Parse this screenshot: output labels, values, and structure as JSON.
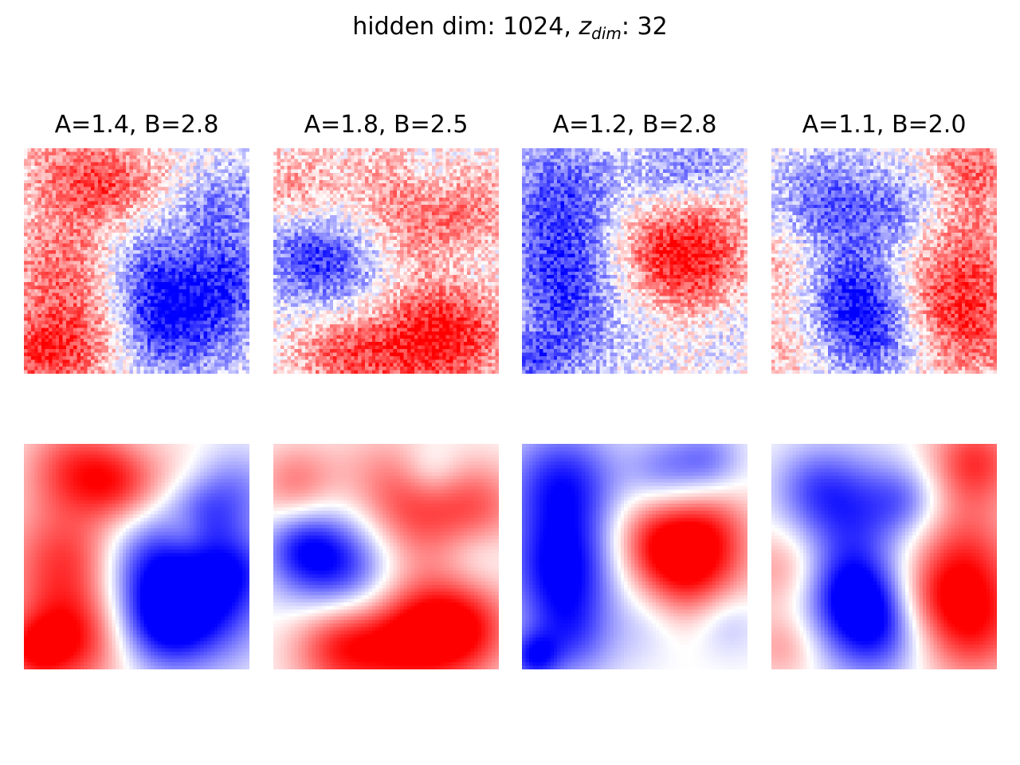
{
  "figure": {
    "title_prefix": "hidden dim: 1024, ",
    "title_var": "z",
    "title_sub": "dim",
    "title_suffix": ": 32"
  },
  "columns": [
    {
      "label": "A=1.4, B=2.8"
    },
    {
      "label": "A=1.8, B=2.5"
    },
    {
      "label": "A=1.2, B=2.8"
    },
    {
      "label": "A=1.1, B=2.0"
    }
  ],
  "rows": [
    "noisy field",
    "smoothed field"
  ],
  "colormap": {
    "negative": "#0000ff",
    "zero": "#ffffff",
    "positive": "#ff0000"
  }
}
